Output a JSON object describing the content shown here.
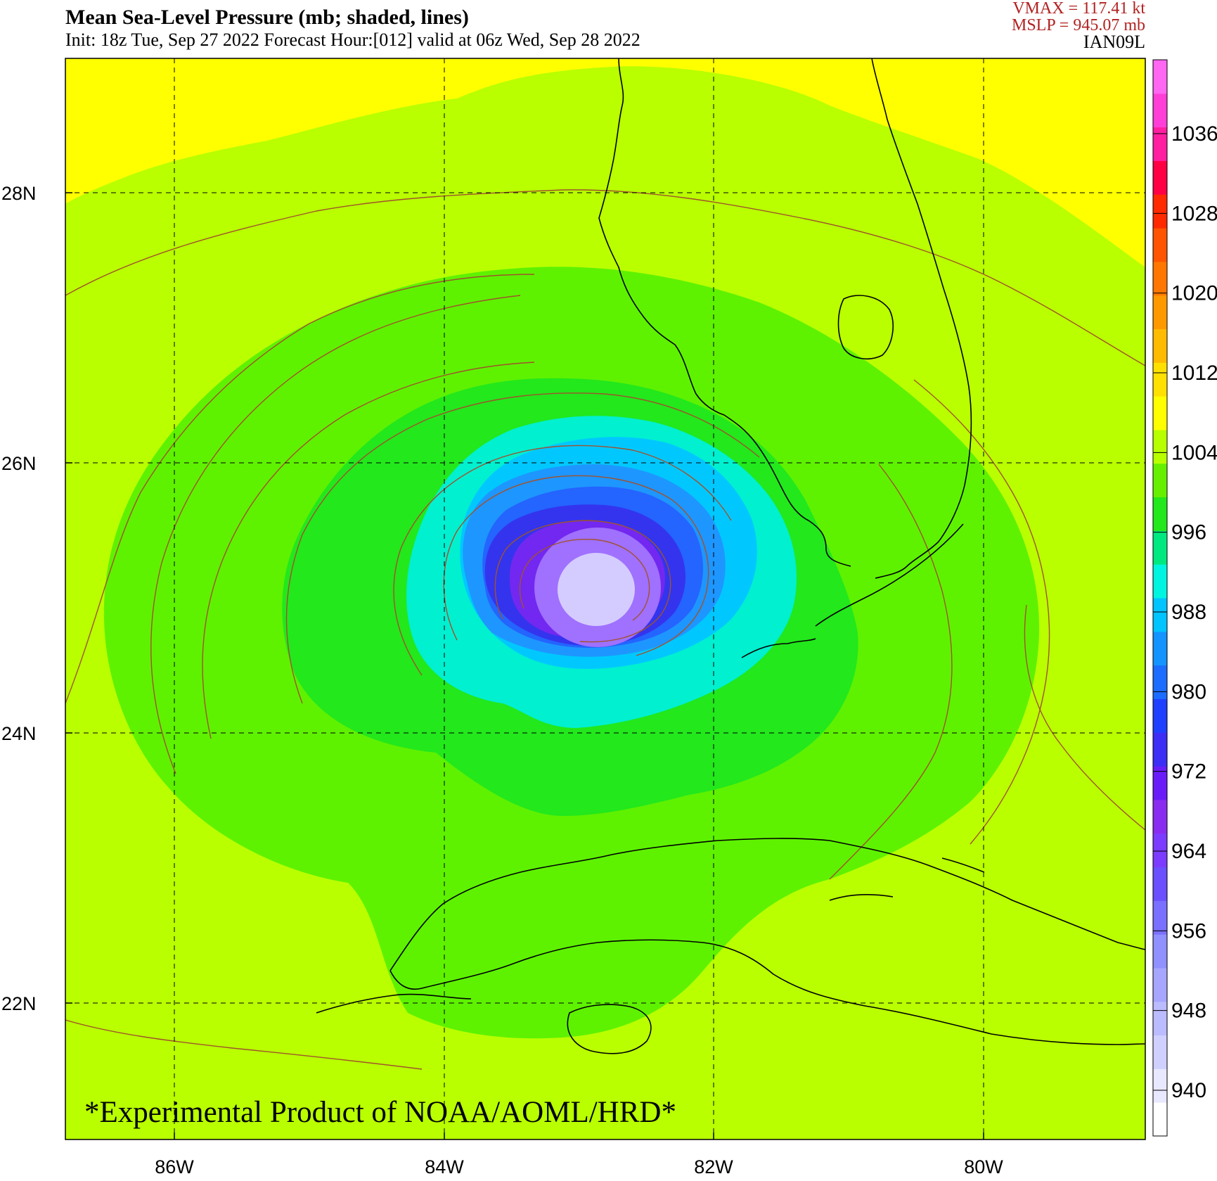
{
  "header": {
    "title": "Mean Sea-Level Pressure (mb; shaded, lines)",
    "subtitle": "Init: 18z Tue, Sep 27 2022  Forecast Hour:[012]  valid at 06z Wed, Sep 28 2022",
    "vmax": "VMAX =  117.41 kt",
    "mslp": "MSLP =  945.07 mb",
    "storm_id": "IAN09L"
  },
  "map": {
    "lon_labels": [
      "86W",
      "84W",
      "82W",
      "80W"
    ],
    "lat_labels": [
      "28N",
      "26N",
      "24N",
      "22N"
    ],
    "gridlines": "dashed",
    "center_pressure_mb": 945.07,
    "watermark": "*Experimental Product of NOAA/AOML/HRD*"
  },
  "colorbar": {
    "labels": [
      "1036",
      "1028",
      "1020",
      "1012",
      "1004",
      "996",
      "988",
      "980",
      "972",
      "964",
      "956",
      "948",
      "940"
    ],
    "colors": [
      "#ffffff",
      "#e8e8ff",
      "#d0d0ff",
      "#bbbbff",
      "#a6a6ff",
      "#9090ff",
      "#7a70ff",
      "#6a50ff",
      "#7b3cff",
      "#8a2cf0",
      "#6a1cf8",
      "#3c2ef5",
      "#2040ff",
      "#1c6cff",
      "#1494ff",
      "#00c4ff",
      "#00f5e0",
      "#00e880",
      "#22e81c",
      "#66f000",
      "#b8ff00",
      "#ffff00",
      "#ffe000",
      "#ffbb00",
      "#ff9900",
      "#ff7700",
      "#ff5500",
      "#ff2a00",
      "#ff0044",
      "#ff1fa0",
      "#ff3ed8",
      "#ff66f2"
    ]
  },
  "shading_colors": {
    "outer": "#b9ff00",
    "north": "#ffff00",
    "ring_1004": "#5ef200",
    "ring_1000": "#22e81c",
    "ring_996": "#00f0d0",
    "ring_992": "#00c8ff",
    "ring_988": "#1e96ff",
    "ring_984": "#2464ff",
    "ring_980": "#3434ee",
    "ring_976": "#7228f0",
    "core_a": "#a070ff",
    "core_b": "#d4ccff",
    "contour": "#a0522d",
    "coast": "#000000"
  }
}
